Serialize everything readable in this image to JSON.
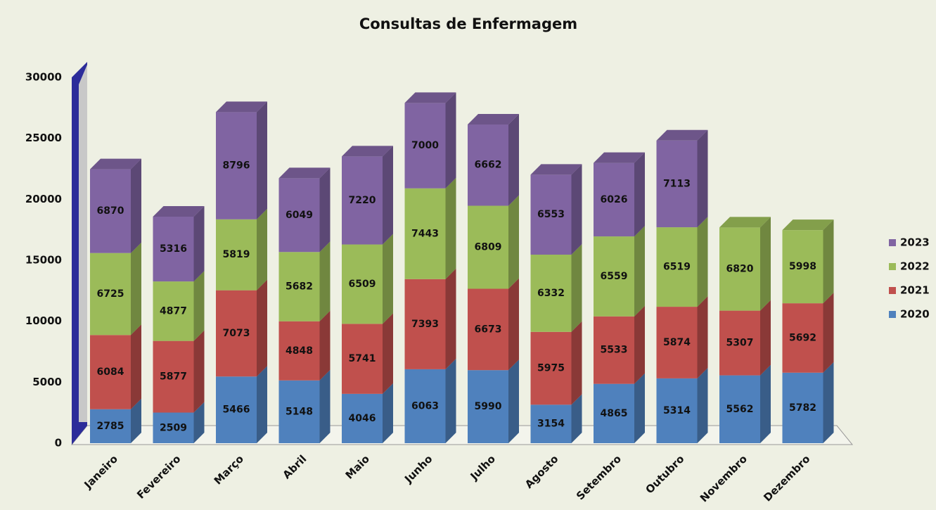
{
  "chart_data": {
    "type": "bar",
    "stacked": true,
    "title": "Consultas de Enfermagem",
    "categories": [
      "Janeiro",
      "Fevereiro",
      "Março",
      "Abril",
      "Maio",
      "Junho",
      "Julho",
      "Agosto",
      "Setembro",
      "Outubro",
      "Novembro",
      "Dezembro"
    ],
    "series": [
      {
        "name": "2020",
        "color": "#4f81bd",
        "values": [
          2785,
          2509,
          5466,
          5148,
          4046,
          6063,
          5990,
          3154,
          4865,
          5314,
          5562,
          5782
        ]
      },
      {
        "name": "2021",
        "color": "#c0504d",
        "values": [
          6084,
          5877,
          7073,
          4848,
          5741,
          7393,
          6673,
          5975,
          5533,
          5874,
          5307,
          5692
        ]
      },
      {
        "name": "2022",
        "color": "#9bbb59",
        "values": [
          6725,
          4877,
          5819,
          5682,
          6509,
          7443,
          6809,
          6332,
          6559,
          6519,
          6820,
          5998
        ]
      },
      {
        "name": "2023",
        "color": "#8064a2",
        "values": [
          6870,
          5316,
          8796,
          6049,
          7220,
          7000,
          6662,
          6553,
          6026,
          7113,
          null,
          null
        ]
      }
    ],
    "ylim": [
      0,
      30000
    ],
    "yticks": [
      0,
      5000,
      10000,
      15000,
      20000,
      25000,
      30000
    ],
    "legend": "right"
  }
}
